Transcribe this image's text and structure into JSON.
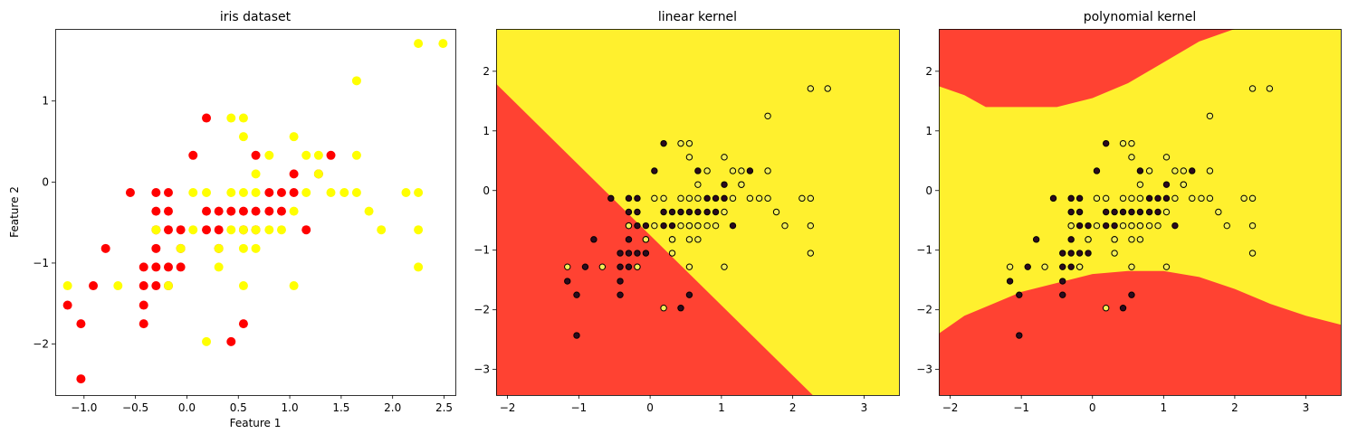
{
  "colors": {
    "class0": "#ff0000",
    "class1": "#ffff00",
    "region_red": "#ff4232",
    "region_yellow": "#fff02e",
    "edge": "#000000",
    "dark_point": "#2b0a1e",
    "light_point": "#f4ef58"
  },
  "points": [
    [
      -1.03,
      -2.43,
      0
    ],
    [
      -1.16,
      -1.52,
      0
    ],
    [
      -1.03,
      -1.75,
      0
    ],
    [
      -0.91,
      -1.28,
      0
    ],
    [
      -0.79,
      -0.82,
      0
    ],
    [
      -0.55,
      -0.13,
      0
    ],
    [
      -0.42,
      -1.05,
      0
    ],
    [
      -0.42,
      -1.28,
      0
    ],
    [
      -0.42,
      -1.52,
      0
    ],
    [
      -0.42,
      -1.75,
      0
    ],
    [
      -0.3,
      -0.13,
      0
    ],
    [
      -0.3,
      -0.36,
      0
    ],
    [
      -0.3,
      -0.59,
      0
    ],
    [
      -0.3,
      -0.82,
      0
    ],
    [
      -0.3,
      -1.05,
      0
    ],
    [
      -0.3,
      -1.28,
      0
    ],
    [
      -0.18,
      -0.13,
      0
    ],
    [
      -0.18,
      -0.36,
      0
    ],
    [
      -0.18,
      -0.59,
      0
    ],
    [
      -0.18,
      -1.05,
      0
    ],
    [
      -0.18,
      -1.28,
      0
    ],
    [
      -0.06,
      -0.59,
      0
    ],
    [
      -0.06,
      -0.82,
      0
    ],
    [
      -0.06,
      -1.05,
      0
    ],
    [
      0.06,
      0.33,
      0
    ],
    [
      0.19,
      0.79,
      0
    ],
    [
      0.19,
      -0.36,
      0
    ],
    [
      0.19,
      -0.59,
      0
    ],
    [
      0.31,
      -0.36,
      0
    ],
    [
      0.31,
      -0.59,
      0
    ],
    [
      0.31,
      -0.82,
      0
    ],
    [
      0.43,
      -0.36,
      0
    ],
    [
      0.43,
      -1.97,
      0
    ],
    [
      0.55,
      -0.36,
      0
    ],
    [
      0.55,
      -0.59,
      0
    ],
    [
      0.55,
      -1.75,
      0
    ],
    [
      0.67,
      0.33,
      0
    ],
    [
      0.67,
      -0.36,
      0
    ],
    [
      0.67,
      -0.59,
      0
    ],
    [
      0.8,
      -0.13,
      0
    ],
    [
      0.8,
      -0.36,
      0
    ],
    [
      0.92,
      -0.13,
      0
    ],
    [
      0.92,
      -0.36,
      0
    ],
    [
      1.04,
      0.1,
      0
    ],
    [
      1.04,
      -0.13,
      0
    ],
    [
      1.16,
      -0.59,
      0
    ],
    [
      1.28,
      0.1,
      0
    ],
    [
      1.4,
      0.33,
      0
    ],
    [
      -1.16,
      -1.28,
      1
    ],
    [
      -0.67,
      -1.28,
      1
    ],
    [
      -0.3,
      -0.59,
      1
    ],
    [
      -0.18,
      -1.28,
      1
    ],
    [
      -0.06,
      -0.82,
      1
    ],
    [
      0.06,
      -0.13,
      1
    ],
    [
      0.06,
      -0.59,
      1
    ],
    [
      0.19,
      -0.13,
      1
    ],
    [
      0.19,
      -1.97,
      1
    ],
    [
      0.31,
      -0.82,
      1
    ],
    [
      0.31,
      -1.05,
      1
    ],
    [
      0.43,
      -0.13,
      1
    ],
    [
      0.43,
      -0.59,
      1
    ],
    [
      0.43,
      0.79,
      1
    ],
    [
      0.55,
      0.79,
      1
    ],
    [
      0.55,
      0.56,
      1
    ],
    [
      0.55,
      -0.13,
      1
    ],
    [
      0.55,
      -0.59,
      1
    ],
    [
      0.55,
      -0.82,
      1
    ],
    [
      0.55,
      -1.28,
      1
    ],
    [
      0.67,
      -0.13,
      1
    ],
    [
      0.67,
      -0.59,
      1
    ],
    [
      0.67,
      -0.82,
      1
    ],
    [
      0.67,
      0.1,
      1
    ],
    [
      0.8,
      0.33,
      1
    ],
    [
      0.8,
      -0.59,
      1
    ],
    [
      0.92,
      -0.59,
      1
    ],
    [
      1.04,
      0.56,
      1
    ],
    [
      1.04,
      -0.36,
      1
    ],
    [
      1.04,
      -1.28,
      1
    ],
    [
      1.16,
      0.33,
      1
    ],
    [
      1.16,
      -0.13,
      1
    ],
    [
      1.28,
      0.33,
      1
    ],
    [
      1.28,
      0.1,
      1
    ],
    [
      1.4,
      -0.13,
      1
    ],
    [
      1.53,
      -0.13,
      1
    ],
    [
      1.65,
      1.25,
      1
    ],
    [
      1.65,
      0.33,
      1
    ],
    [
      1.65,
      -0.13,
      1
    ],
    [
      1.77,
      -0.36,
      1
    ],
    [
      1.89,
      -0.59,
      1
    ],
    [
      2.13,
      -0.13,
      1
    ],
    [
      2.25,
      1.71,
      1
    ],
    [
      2.25,
      -0.13,
      1
    ],
    [
      2.25,
      -0.59,
      1
    ],
    [
      2.25,
      -1.05,
      1
    ],
    [
      2.49,
      1.71,
      1
    ]
  ],
  "chart_data": [
    {
      "type": "scatter",
      "title": "iris dataset",
      "xlabel": "Feature 1",
      "ylabel": "Feature 2",
      "xlim": [
        -1.28,
        2.61
      ],
      "ylim": [
        -2.63,
        1.89
      ],
      "xticks": [
        -1.0,
        -0.5,
        0.0,
        0.5,
        1.0,
        1.5,
        2.0,
        2.5
      ],
      "xtick_labels": [
        "−1.0",
        "−0.5",
        "0.0",
        "0.5",
        "1.0",
        "1.5",
        "2.0",
        "2.5"
      ],
      "yticks": [
        -2,
        -1,
        0,
        1
      ],
      "ytick_labels": [
        "−2",
        "−1",
        "0",
        "1"
      ],
      "grid": false
    },
    {
      "type": "scatter",
      "title": "linear kernel",
      "xlabel": "",
      "ylabel": "",
      "xlim": [
        -2.16,
        3.49
      ],
      "ylim": [
        -3.43,
        2.71
      ],
      "xticks": [
        -2,
        -1,
        0,
        1,
        2,
        3
      ],
      "xtick_labels": [
        "−2",
        "−1",
        "0",
        "1",
        "2",
        "3"
      ],
      "yticks": [
        -3,
        -2,
        -1,
        0,
        1,
        2
      ],
      "ytick_labels": [
        "−3",
        "−2",
        "−1",
        "0",
        "1",
        "2"
      ],
      "decision_boundary": {
        "kind": "line",
        "through": [
          [
            -2.16,
            1.79
          ],
          [
            2.28,
            -3.43
          ]
        ]
      },
      "grid": false
    },
    {
      "type": "scatter",
      "title": "polynomial kernel",
      "xlabel": "",
      "ylabel": "",
      "xlim": [
        -2.16,
        3.49
      ],
      "ylim": [
        -3.43,
        2.71
      ],
      "xticks": [
        -2,
        -1,
        0,
        1,
        2,
        3
      ],
      "xtick_labels": [
        "−2",
        "−1",
        "0",
        "1",
        "2",
        "3"
      ],
      "yticks": [
        -3,
        -2,
        -1,
        0,
        1,
        2
      ],
      "ytick_labels": [
        "−3",
        "−2",
        "−1",
        "0",
        "1",
        "2"
      ],
      "decision_boundary": {
        "kind": "upper_and_lower_curves",
        "upper": [
          [
            -2.16,
            1.75
          ],
          [
            -1.8,
            1.6
          ],
          [
            -1.5,
            1.4
          ],
          [
            -1.0,
            1.4
          ],
          [
            -0.5,
            1.4
          ],
          [
            0.0,
            1.55
          ],
          [
            0.5,
            1.8
          ],
          [
            1.0,
            2.15
          ],
          [
            1.5,
            2.5
          ],
          [
            2.0,
            2.71
          ]
        ],
        "lower": [
          [
            -2.16,
            -2.4
          ],
          [
            -1.8,
            -2.1
          ],
          [
            -1.4,
            -1.9
          ],
          [
            -1.0,
            -1.7
          ],
          [
            -0.5,
            -1.55
          ],
          [
            0.0,
            -1.4
          ],
          [
            0.5,
            -1.35
          ],
          [
            1.0,
            -1.35
          ],
          [
            1.5,
            -1.45
          ],
          [
            2.0,
            -1.65
          ],
          [
            2.5,
            -1.9
          ],
          [
            3.0,
            -2.1
          ],
          [
            3.49,
            -2.25
          ]
        ]
      },
      "grid": false
    }
  ]
}
